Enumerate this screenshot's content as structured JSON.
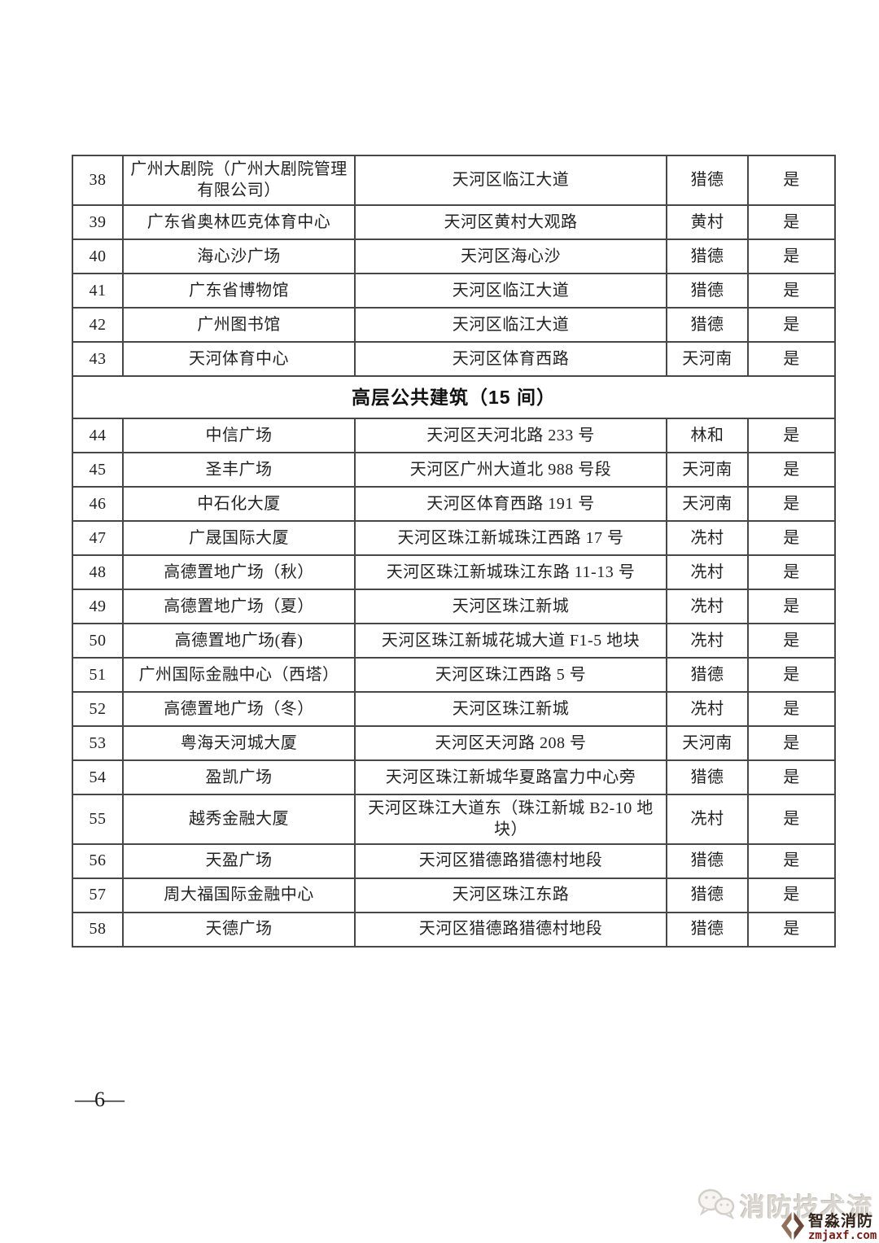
{
  "page": {
    "number_label": "—6—"
  },
  "table": {
    "sections": [
      {
        "header": "",
        "rows": [
          {
            "no": "38",
            "name": "广州大剧院（广州大剧院管理有限公司）",
            "address": "天河区临江大道",
            "area": "猎德",
            "managed": "是"
          },
          {
            "no": "39",
            "name": "广东省奥林匹克体育中心",
            "address": "天河区黄村大观路",
            "area": "黄村",
            "managed": "是"
          },
          {
            "no": "40",
            "name": "海心沙广场",
            "address": "天河区海心沙",
            "area": "猎德",
            "managed": "是"
          },
          {
            "no": "41",
            "name": "广东省博物馆",
            "address": "天河区临江大道",
            "area": "猎德",
            "managed": "是"
          },
          {
            "no": "42",
            "name": "广州图书馆",
            "address": "天河区临江大道",
            "area": "猎德",
            "managed": "是"
          },
          {
            "no": "43",
            "name": "天河体育中心",
            "address": "天河区体育西路",
            "area": "天河南",
            "managed": "是"
          }
        ]
      },
      {
        "header": "高层公共建筑（15 间）",
        "rows": [
          {
            "no": "44",
            "name": "中信广场",
            "address": "天河区天河北路 233 号",
            "area": "林和",
            "managed": "是"
          },
          {
            "no": "45",
            "name": "圣丰广场",
            "address": "天河区广州大道北 988 号段",
            "area": "天河南",
            "managed": "是"
          },
          {
            "no": "46",
            "name": "中石化大厦",
            "address": "天河区体育西路 191 号",
            "area": "天河南",
            "managed": "是"
          },
          {
            "no": "47",
            "name": "广晟国际大厦",
            "address": "天河区珠江新城珠江西路 17 号",
            "area": "冼村",
            "managed": "是"
          },
          {
            "no": "48",
            "name": "高德置地广场（秋）",
            "address": "天河区珠江新城珠江东路 11-13 号",
            "area": "冼村",
            "managed": "是"
          },
          {
            "no": "49",
            "name": "高德置地广场（夏）",
            "address": "天河区珠江新城",
            "area": "冼村",
            "managed": "是"
          },
          {
            "no": "50",
            "name": "高德置地广场(春)",
            "address": "天河区珠江新城花城大道 F1-5 地块",
            "area": "冼村",
            "managed": "是"
          },
          {
            "no": "51",
            "name": "广州国际金融中心（西塔）",
            "address": "天河区珠江西路 5 号",
            "area": "猎德",
            "managed": "是"
          },
          {
            "no": "52",
            "name": "高德置地广场（冬）",
            "address": "天河区珠江新城",
            "area": "冼村",
            "managed": "是"
          },
          {
            "no": "53",
            "name": "粤海天河城大厦",
            "address": "天河区天河路 208 号",
            "area": "天河南",
            "managed": "是"
          },
          {
            "no": "54",
            "name": "盈凯广场",
            "address": "天河区珠江新城华夏路富力中心旁",
            "area": "猎德",
            "managed": "是"
          },
          {
            "no": "55",
            "name": "越秀金融大厦",
            "address": "天河区珠江大道东（珠江新城 B2-10 地块）",
            "area": "冼村",
            "managed": "是"
          },
          {
            "no": "56",
            "name": "天盈广场",
            "address": "天河区猎德路猎德村地段",
            "area": "猎德",
            "managed": "是"
          },
          {
            "no": "57",
            "name": "周大福国际金融中心",
            "address": "天河区珠江东路",
            "area": "猎德",
            "managed": "是"
          },
          {
            "no": "58",
            "name": "天德广场",
            "address": "天河区猎德路猎德村地段",
            "area": "猎德",
            "managed": "是"
          }
        ]
      }
    ]
  },
  "watermark": {
    "wechat_label": "消防技术流"
  },
  "logo": {
    "name": "智淼消防",
    "url": "zmjaxf.com"
  }
}
